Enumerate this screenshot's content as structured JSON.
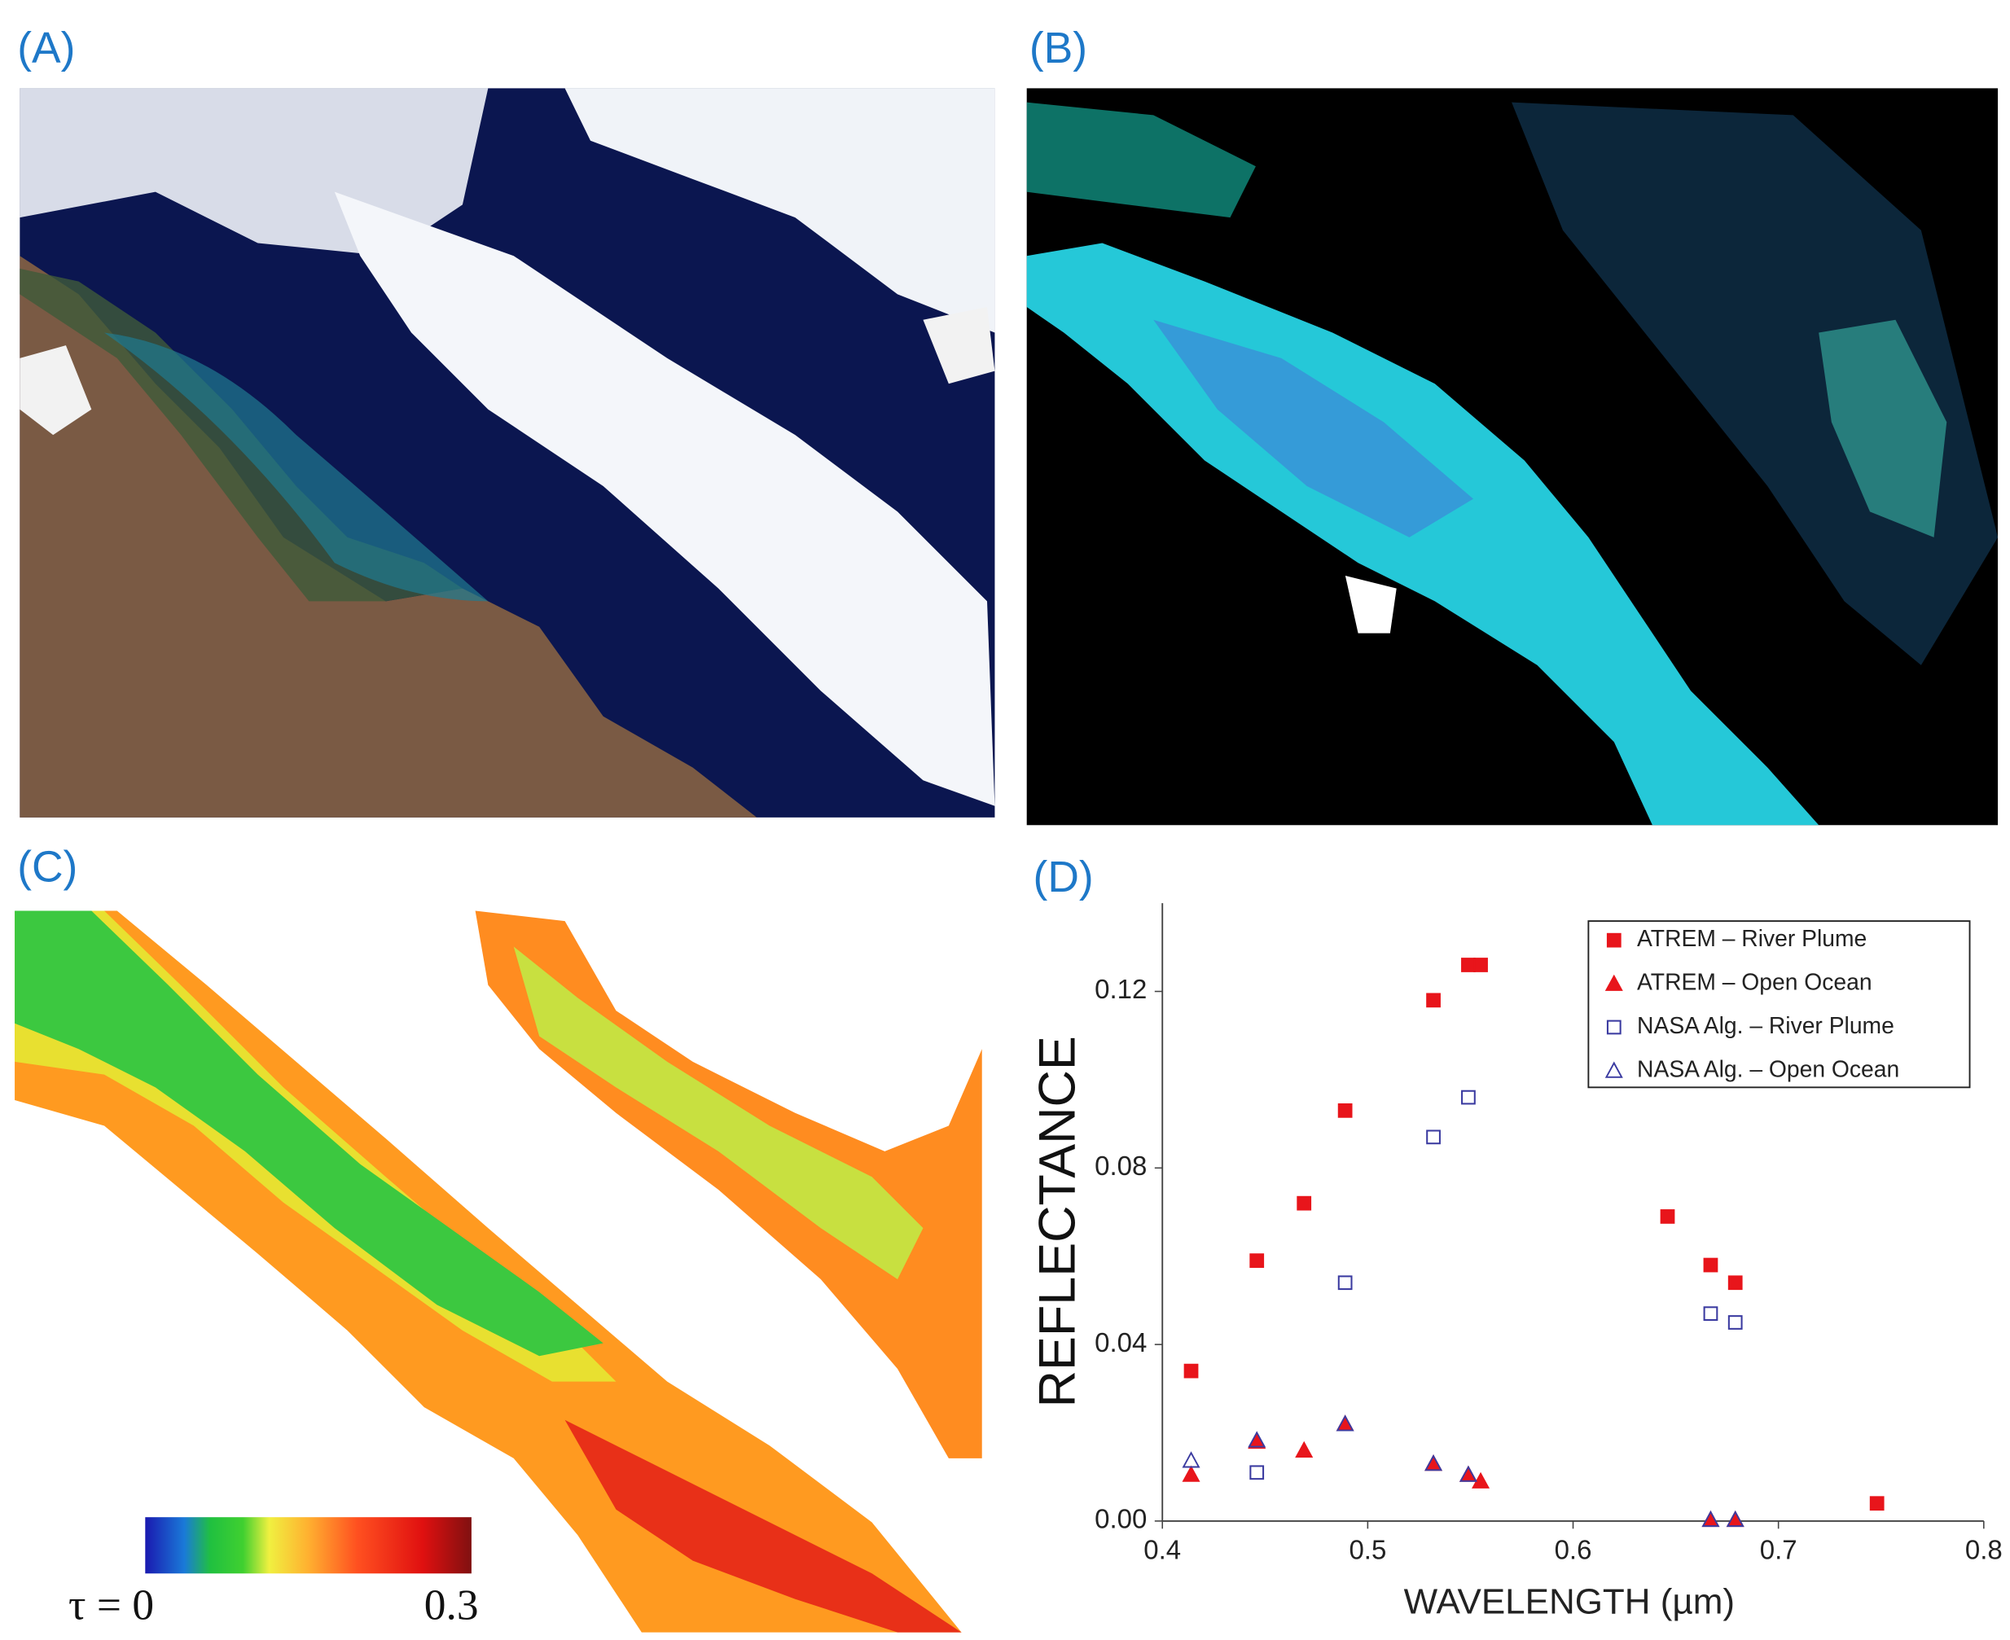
{
  "panel_labels": [
    "(A)",
    "(B)",
    "(C)",
    "(D)"
  ],
  "colorbar": {
    "min_label": "τ = 0",
    "max_label": "0.3"
  },
  "chart_data": {
    "type": "scatter",
    "xlabel": "WAVELENGTH (µm)",
    "ylabel": "REFLECTANCE",
    "xlim": [
      0.4,
      0.8
    ],
    "ylim": [
      0,
      0.14
    ],
    "xticks": [
      0.4,
      0.5,
      0.6,
      0.7,
      0.8
    ],
    "yticks": [
      {
        "value": 0,
        "label": "0.00"
      },
      {
        "value": 0.04,
        "label": "0.04"
      },
      {
        "value": 0.08,
        "label": "0.08"
      },
      {
        "value": 0.12,
        "label": "0.12"
      }
    ],
    "grid": false,
    "legend": "upper right",
    "series": [
      {
        "name": "ATREM – River Plume",
        "color": "#e8151b",
        "edgecolor": "#e8151b",
        "marker": "square",
        "filled": true,
        "x": [
          0.414,
          0.446,
          0.469,
          0.489,
          0.532,
          0.549,
          0.555,
          0.646,
          0.667,
          0.679,
          0.748
        ],
        "values": [
          0.034,
          0.059,
          0.072,
          0.093,
          0.118,
          0.126,
          0.126,
          0.069,
          0.058,
          0.054,
          0.004
        ]
      },
      {
        "name": "ATREM – Open Ocean",
        "color": "#e8151b",
        "edgecolor": "#e8151b",
        "marker": "triangle",
        "filled": true,
        "x": [
          0.414,
          0.446,
          0.469,
          0.489,
          0.532,
          0.549,
          0.555,
          0.667,
          0.679
        ],
        "values": [
          0.0105,
          0.018,
          0.016,
          0.022,
          0.013,
          0.0105,
          0.009,
          0.0003,
          0.0003
        ]
      },
      {
        "name": "NASA Alg. – River Plume",
        "color": "#3a3aa0",
        "edgecolor": "#3a3aa0",
        "marker": "square",
        "filled": false,
        "x": [
          0.446,
          0.489,
          0.532,
          0.549,
          0.667,
          0.679
        ],
        "values": [
          0.011,
          0.054,
          0.087,
          0.096,
          0.047,
          0.045
        ]
      },
      {
        "name": "NASA Alg. – Open Ocean",
        "color": "#3a3aa0",
        "edgecolor": "#3a3aa0",
        "marker": "triangle",
        "filled": false,
        "x": [
          0.414,
          0.446,
          0.489,
          0.532,
          0.549,
          0.667,
          0.679
        ],
        "values": [
          0.0137,
          0.0183,
          0.022,
          0.013,
          0.0105,
          0.0003,
          0.0003
        ]
      }
    ]
  }
}
